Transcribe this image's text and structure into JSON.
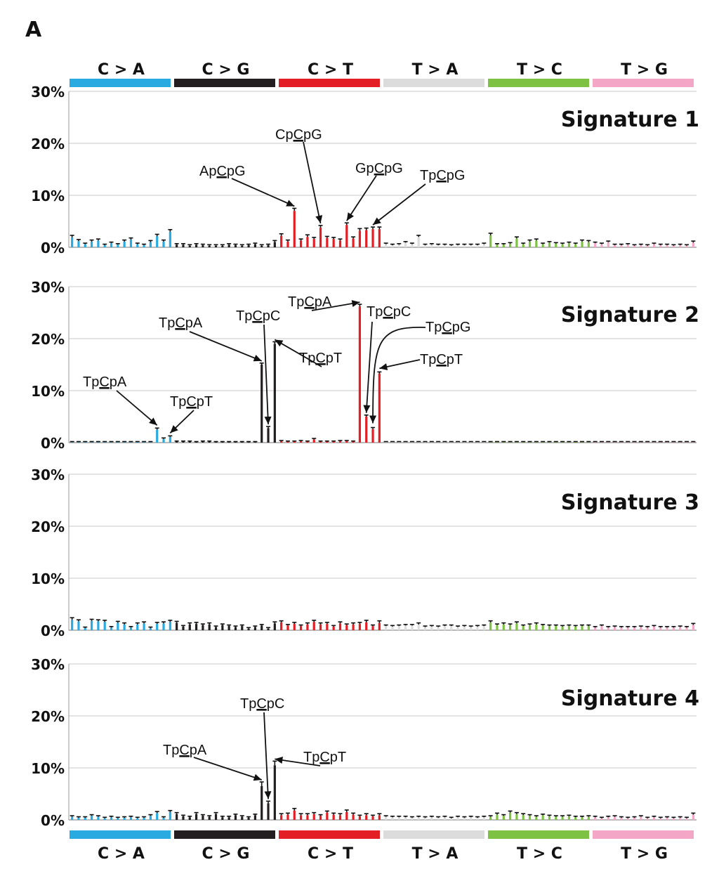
{
  "panel_label": "A",
  "categories": [
    {
      "label": "C > A",
      "color": "#29abe2"
    },
    {
      "label": "C > G",
      "color": "#231f20"
    },
    {
      "label": "C > T",
      "color": "#e31e24"
    },
    {
      "label": "T > A",
      "color": "#dcdcdc"
    },
    {
      "label": "T > C",
      "color": "#7dc242"
    },
    {
      "label": "T > G",
      "color": "#f4a6c6"
    }
  ],
  "y_tick_labels": [
    "0%",
    "10%",
    "20%",
    "30%"
  ],
  "chart_data": {
    "type": "bar",
    "ylim": [
      0,
      30
    ],
    "yticks": [
      0,
      10,
      20,
      30
    ],
    "y_unit": "%",
    "n_contexts": 96,
    "contexts_per_category": 16,
    "category_labels": [
      "C > A",
      "C > G",
      "C > T",
      "T > A",
      "T > C",
      "T > G"
    ],
    "series": [
      {
        "name": "Signature 1",
        "values": [
          1.9,
          1.2,
          0.6,
          1.1,
          1.3,
          0.4,
          0.8,
          0.5,
          1.1,
          1.5,
          0.6,
          0.4,
          1.0,
          2.1,
          1.1,
          3.0,
          0.5,
          0.5,
          0.3,
          0.5,
          0.4,
          0.3,
          0.3,
          0.3,
          0.5,
          0.4,
          0.3,
          0.4,
          0.6,
          0.3,
          0.4,
          1.0,
          2.2,
          1.1,
          7.0,
          1.3,
          2.0,
          1.6,
          3.8,
          1.8,
          1.6,
          1.3,
          4.3,
          1.7,
          3.2,
          3.3,
          3.5,
          3.5,
          0.6,
          0.4,
          0.5,
          0.9,
          0.6,
          2.0,
          0.4,
          0.5,
          0.4,
          0.4,
          0.3,
          0.4,
          0.4,
          0.4,
          0.4,
          0.6,
          2.3,
          0.5,
          0.5,
          0.7,
          1.7,
          0.6,
          1.1,
          1.3,
          0.6,
          0.9,
          0.7,
          0.6,
          0.8,
          0.6,
          1.1,
          1.0,
          0.8,
          0.6,
          1.0,
          0.4,
          0.4,
          0.5,
          0.3,
          0.4,
          0.3,
          0.6,
          0.4,
          0.4,
          0.3,
          0.4,
          0.3,
          0.9
        ],
        "errors": [
          0.4,
          0.3,
          0.2,
          0.3,
          0.3,
          0.2,
          0.2,
          0.2,
          0.3,
          0.3,
          0.2,
          0.2,
          0.3,
          0.4,
          0.3,
          0.4,
          0.2,
          0.2,
          0.2,
          0.2,
          0.2,
          0.2,
          0.2,
          0.2,
          0.2,
          0.2,
          0.2,
          0.2,
          0.2,
          0.2,
          0.2,
          0.3,
          0.4,
          0.3,
          0.5,
          0.3,
          0.4,
          0.3,
          0.4,
          0.3,
          0.3,
          0.3,
          0.4,
          0.3,
          0.4,
          0.4,
          0.4,
          0.4,
          0.2,
          0.2,
          0.2,
          0.2,
          0.2,
          0.3,
          0.2,
          0.2,
          0.2,
          0.2,
          0.2,
          0.2,
          0.2,
          0.2,
          0.2,
          0.2,
          0.4,
          0.2,
          0.2,
          0.2,
          0.3,
          0.2,
          0.3,
          0.3,
          0.2,
          0.2,
          0.2,
          0.2,
          0.2,
          0.2,
          0.3,
          0.3,
          0.2,
          0.2,
          0.2,
          0.2,
          0.2,
          0.2,
          0.2,
          0.2,
          0.2,
          0.2,
          0.2,
          0.2,
          0.2,
          0.2,
          0.2,
          0.3
        ],
        "annotations": [
          {
            "text": "ApCpG",
            "pre": "Ap",
            "mid": "C",
            "post": "pG",
            "target": 34
          },
          {
            "text": "CpCpG",
            "pre": "Cp",
            "mid": "C",
            "post": "pG",
            "target": 38
          },
          {
            "text": "GpCpG",
            "pre": "Gp",
            "mid": "C",
            "post": "pG",
            "target": 42
          },
          {
            "text": "TpCpG",
            "pre": "Tp",
            "mid": "C",
            "post": "pG",
            "target": 46
          }
        ]
      },
      {
        "name": "Signature 2",
        "values": [
          0.1,
          0.1,
          0.1,
          0.1,
          0.1,
          0.1,
          0.1,
          0.1,
          0.1,
          0.1,
          0.1,
          0.1,
          0.1,
          2.5,
          0.7,
          1.1,
          0.2,
          0.2,
          0.2,
          0.1,
          0.2,
          0.2,
          0.1,
          0.1,
          0.1,
          0.1,
          0.1,
          0.1,
          0.1,
          15.0,
          2.8,
          19.0,
          0.3,
          0.2,
          0.2,
          0.3,
          0.2,
          0.6,
          0.2,
          0.2,
          0.2,
          0.3,
          0.3,
          0.2,
          26.2,
          5.0,
          2.6,
          13.3,
          0.1,
          0.1,
          0.1,
          0.1,
          0.1,
          0.1,
          0.1,
          0.1,
          0.1,
          0.1,
          0.1,
          0.1,
          0.1,
          0.1,
          0.1,
          0.1,
          0.1,
          0.1,
          0.1,
          0.1,
          0.1,
          0.1,
          0.1,
          0.1,
          0.1,
          0.1,
          0.1,
          0.1,
          0.1,
          0.1,
          0.1,
          0.1,
          0.1,
          0.1,
          0.1,
          0.1,
          0.1,
          0.1,
          0.1,
          0.1,
          0.1,
          0.1,
          0.1,
          0.1,
          0.1,
          0.1,
          0.1,
          0.1
        ],
        "errors": [
          0.1,
          0.1,
          0.1,
          0.1,
          0.1,
          0.1,
          0.1,
          0.1,
          0.1,
          0.1,
          0.1,
          0.1,
          0.1,
          0.3,
          0.2,
          0.2,
          0.1,
          0.1,
          0.1,
          0.1,
          0.1,
          0.1,
          0.1,
          0.1,
          0.1,
          0.1,
          0.1,
          0.1,
          0.1,
          0.3,
          0.3,
          0.4,
          0.1,
          0.1,
          0.1,
          0.1,
          0.1,
          0.2,
          0.1,
          0.1,
          0.1,
          0.1,
          0.1,
          0.1,
          0.4,
          0.3,
          0.3,
          0.3,
          0.1,
          0.1,
          0.1,
          0.1,
          0.1,
          0.1,
          0.1,
          0.1,
          0.1,
          0.1,
          0.1,
          0.1,
          0.1,
          0.1,
          0.1,
          0.1,
          0.1,
          0.1,
          0.1,
          0.1,
          0.1,
          0.1,
          0.1,
          0.1,
          0.1,
          0.1,
          0.1,
          0.1,
          0.1,
          0.1,
          0.1,
          0.1,
          0.1,
          0.1,
          0.1,
          0.1,
          0.1,
          0.1,
          0.1,
          0.1,
          0.1,
          0.1,
          0.1,
          0.1,
          0.1,
          0.1,
          0.1,
          0.1
        ],
        "annotations": [
          {
            "text": "TpCpA",
            "pre": "Tp",
            "mid": "C",
            "post": "pA",
            "target": 13
          },
          {
            "text": "TpCpT",
            "pre": "Tp",
            "mid": "C",
            "post": "pT",
            "target": 15
          },
          {
            "text": "TpCpA",
            "pre": "Tp",
            "mid": "C",
            "post": "pA",
            "target": 29
          },
          {
            "text": "TpCpC",
            "pre": "Tp",
            "mid": "C",
            "post": "pC",
            "target": 30
          },
          {
            "text": "TpCpT",
            "pre": "Tp",
            "mid": "C",
            "post": "pT",
            "target": 31
          },
          {
            "text": "TpCpA",
            "pre": "Tp",
            "mid": "C",
            "post": "pA",
            "target": 44
          },
          {
            "text": "TpCpC",
            "pre": "Tp",
            "mid": "C",
            "post": "pC",
            "target": 45
          },
          {
            "text": "TpCpG",
            "pre": "Tp",
            "mid": "C",
            "post": "pG",
            "target": 46
          },
          {
            "text": "TpCpT",
            "pre": "Tp",
            "mid": "C",
            "post": "pT",
            "target": 47
          }
        ]
      },
      {
        "name": "Signature 3",
        "values": [
          2.0,
          1.7,
          0.4,
          1.8,
          1.7,
          1.6,
          0.5,
          1.4,
          1.1,
          0.5,
          1.1,
          1.3,
          0.4,
          1.2,
          1.3,
          1.6,
          1.4,
          0.7,
          1.1,
          1.2,
          1.0,
          1.1,
          0.6,
          1.0,
          0.8,
          0.6,
          0.8,
          0.3,
          0.6,
          0.9,
          0.3,
          1.3,
          1.5,
          0.9,
          1.2,
          0.8,
          1.1,
          1.6,
          1.1,
          1.2,
          0.7,
          1.3,
          1.0,
          1.1,
          1.2,
          1.5,
          0.8,
          1.4,
          0.8,
          0.7,
          0.8,
          0.9,
          0.9,
          1.1,
          0.6,
          0.7,
          0.6,
          0.8,
          0.8,
          0.6,
          0.7,
          0.6,
          0.7,
          0.8,
          1.5,
          1.0,
          1.1,
          1.0,
          1.3,
          0.8,
          1.0,
          1.1,
          0.9,
          0.8,
          0.8,
          0.7,
          0.8,
          0.7,
          0.8,
          0.8,
          0.5,
          0.8,
          0.5,
          0.6,
          0.5,
          0.5,
          0.5,
          0.6,
          0.5,
          0.7,
          0.5,
          0.5,
          0.5,
          0.6,
          0.5,
          1.0
        ],
        "errors": [
          0.4,
          0.3,
          0.2,
          0.3,
          0.3,
          0.3,
          0.2,
          0.3,
          0.3,
          0.2,
          0.3,
          0.3,
          0.2,
          0.3,
          0.3,
          0.3,
          0.3,
          0.2,
          0.3,
          0.3,
          0.2,
          0.3,
          0.2,
          0.2,
          0.2,
          0.2,
          0.2,
          0.2,
          0.2,
          0.2,
          0.2,
          0.3,
          0.3,
          0.2,
          0.3,
          0.2,
          0.3,
          0.3,
          0.3,
          0.3,
          0.2,
          0.3,
          0.2,
          0.3,
          0.3,
          0.4,
          0.2,
          0.4,
          0.2,
          0.2,
          0.2,
          0.2,
          0.2,
          0.3,
          0.2,
          0.2,
          0.2,
          0.2,
          0.2,
          0.2,
          0.2,
          0.2,
          0.2,
          0.2,
          0.3,
          0.2,
          0.3,
          0.2,
          0.3,
          0.2,
          0.2,
          0.3,
          0.2,
          0.2,
          0.2,
          0.2,
          0.2,
          0.2,
          0.2,
          0.2,
          0.2,
          0.2,
          0.2,
          0.2,
          0.2,
          0.2,
          0.2,
          0.2,
          0.2,
          0.2,
          0.2,
          0.2,
          0.2,
          0.2,
          0.2,
          0.3
        ],
        "annotations": []
      },
      {
        "name": "Signature 4",
        "values": [
          0.6,
          0.4,
          0.4,
          0.8,
          0.6,
          0.3,
          0.5,
          0.3,
          0.4,
          0.5,
          0.3,
          0.4,
          0.8,
          1.3,
          0.4,
          1.5,
          1.1,
          0.7,
          0.5,
          1.1,
          0.8,
          0.6,
          1.1,
          0.5,
          0.5,
          0.9,
          0.6,
          0.4,
          0.9,
          6.5,
          3.2,
          10.5,
          0.9,
          1.0,
          1.8,
          0.9,
          0.9,
          1.1,
          0.8,
          1.4,
          1.0,
          0.9,
          1.5,
          1.0,
          0.7,
          0.9,
          0.7,
          0.9,
          0.6,
          0.5,
          0.5,
          0.5,
          0.4,
          0.5,
          0.4,
          0.5,
          0.4,
          0.5,
          0.3,
          0.5,
          0.4,
          0.5,
          0.4,
          0.5,
          0.6,
          1.0,
          0.8,
          1.4,
          1.1,
          0.9,
          0.8,
          0.6,
          0.9,
          0.7,
          0.6,
          0.6,
          0.7,
          0.5,
          0.5,
          0.6,
          0.5,
          0.3,
          0.5,
          0.6,
          0.4,
          0.3,
          0.4,
          0.6,
          0.3,
          0.5,
          0.3,
          0.4,
          0.3,
          0.4,
          0.3,
          1.0
        ],
        "errors": [
          0.2,
          0.2,
          0.2,
          0.2,
          0.2,
          0.2,
          0.2,
          0.2,
          0.2,
          0.2,
          0.2,
          0.2,
          0.2,
          0.3,
          0.2,
          0.3,
          0.3,
          0.2,
          0.2,
          0.3,
          0.2,
          0.2,
          0.3,
          0.2,
          0.2,
          0.2,
          0.2,
          0.2,
          0.2,
          0.8,
          0.4,
          0.8,
          0.3,
          0.3,
          0.4,
          0.3,
          0.3,
          0.3,
          0.2,
          0.3,
          0.3,
          0.3,
          0.4,
          0.3,
          0.2,
          0.3,
          0.2,
          0.3,
          0.2,
          0.2,
          0.2,
          0.2,
          0.2,
          0.2,
          0.2,
          0.2,
          0.2,
          0.2,
          0.2,
          0.2,
          0.2,
          0.2,
          0.2,
          0.2,
          0.2,
          0.3,
          0.2,
          0.3,
          0.3,
          0.3,
          0.2,
          0.2,
          0.2,
          0.2,
          0.2,
          0.2,
          0.2,
          0.2,
          0.2,
          0.2,
          0.2,
          0.2,
          0.2,
          0.2,
          0.2,
          0.2,
          0.2,
          0.2,
          0.2,
          0.2,
          0.2,
          0.2,
          0.2,
          0.2,
          0.2,
          0.3
        ],
        "annotations": [
          {
            "text": "TpCpA",
            "pre": "Tp",
            "mid": "C",
            "post": "pA",
            "target": 29
          },
          {
            "text": "TpCpC",
            "pre": "Tp",
            "mid": "C",
            "post": "pC",
            "target": 30
          },
          {
            "text": "TpCpT",
            "pre": "Tp",
            "mid": "C",
            "post": "pT",
            "target": 31
          }
        ]
      }
    ]
  }
}
